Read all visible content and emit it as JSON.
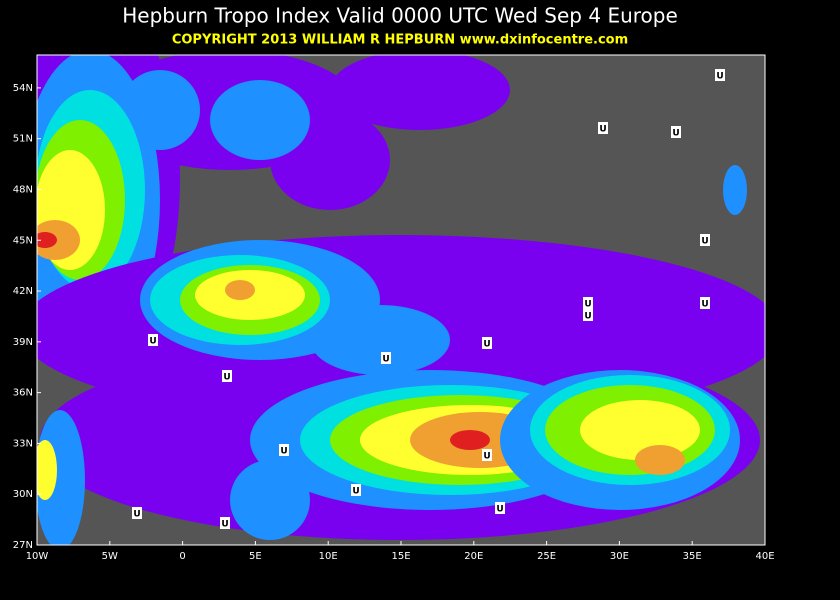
{
  "header": {
    "title": "Hepburn Tropo Index Valid 0000 UTC Wed Sep 4 Europe",
    "copyright": "COPYRIGHT 2013  WILLIAM R HEPBURN  www.dxinfocentre.com"
  },
  "map": {
    "lat_labels": [
      "54N",
      "51N",
      "48N",
      "45N",
      "42N",
      "39N",
      "36N",
      "33N",
      "30N",
      "27N"
    ],
    "lon_labels": [
      "10W",
      "5W",
      "0",
      "5E",
      "10E",
      "15E",
      "20E",
      "25E",
      "30E",
      "35E",
      "40E"
    ],
    "markers": [
      "U",
      "U",
      "U",
      "U",
      "U",
      "U",
      "U",
      "U",
      "U",
      "U",
      "U",
      "U",
      "U",
      "U",
      "U",
      "U",
      "U"
    ]
  }
}
